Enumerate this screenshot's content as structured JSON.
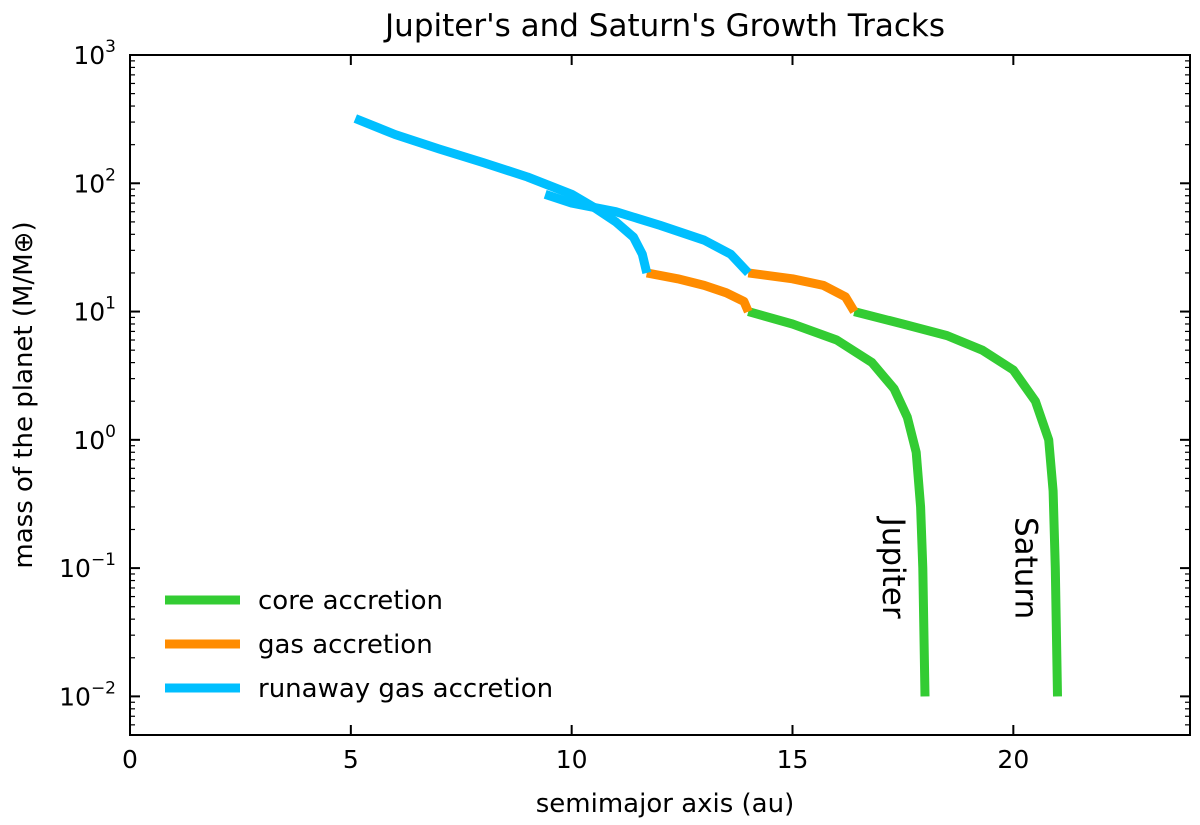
{
  "chart_data": {
    "type": "line",
    "title": "Jupiter's and Saturn's Growth Tracks",
    "xlabel": "semimajor axis (au)",
    "ylabel": "mass of the planet (M/M⊕)",
    "xlim": [
      0,
      24
    ],
    "ylim": [
      0.005,
      1000
    ],
    "yscale": "log",
    "grid": false,
    "legend_position": "lower-left",
    "x_ticks": [
      {
        "value": 0,
        "label": "0"
      },
      {
        "value": 5,
        "label": "5"
      },
      {
        "value": 10,
        "label": "10"
      },
      {
        "value": 15,
        "label": "15"
      },
      {
        "value": 20,
        "label": "20"
      }
    ],
    "y_ticks": [
      {
        "value": 0.01,
        "base": "10",
        "exp": "−2"
      },
      {
        "value": 0.1,
        "base": "10",
        "exp": "−1"
      },
      {
        "value": 1,
        "base": "10",
        "exp": "0"
      },
      {
        "value": 10,
        "base": "10",
        "exp": "1"
      },
      {
        "value": 100,
        "base": "10",
        "exp": "2"
      },
      {
        "value": 1000,
        "base": "10",
        "exp": "3"
      }
    ],
    "stages": [
      {
        "key": "core",
        "name": "core accretion",
        "color": "#33cc33"
      },
      {
        "key": "gas",
        "name": "gas accretion",
        "color": "#ff8c00"
      },
      {
        "key": "runaway",
        "name": "runaway gas accretion",
        "color": "#00bfff"
      }
    ],
    "tracks": [
      {
        "planet": "Jupiter",
        "label_at": {
          "x": 17.3,
          "y": 0.1
        },
        "segments": [
          {
            "stage": "core",
            "points": [
              [
                18.0,
                0.01
              ],
              [
                17.95,
                0.1
              ],
              [
                17.9,
                0.3
              ],
              [
                17.8,
                0.8
              ],
              [
                17.6,
                1.5
              ],
              [
                17.3,
                2.5
              ],
              [
                16.8,
                4.0
              ],
              [
                16.0,
                6.0
              ],
              [
                15.0,
                8.0
              ],
              [
                14.0,
                10.0
              ]
            ]
          },
          {
            "stage": "gas",
            "points": [
              [
                14.0,
                10.0
              ],
              [
                13.9,
                12.0
              ],
              [
                13.5,
                14.0
              ],
              [
                13.0,
                16.0
              ],
              [
                12.4,
                18.0
              ],
              [
                11.7,
                20.0
              ]
            ]
          },
          {
            "stage": "runaway",
            "points": [
              [
                11.7,
                20.0
              ],
              [
                11.6,
                28.0
              ],
              [
                11.4,
                38.0
              ],
              [
                11.0,
                50.0
              ],
              [
                10.5,
                65.0
              ],
              [
                10.0,
                82.0
              ],
              [
                9.0,
                112.0
              ],
              [
                8.0,
                145.0
              ],
              [
                7.0,
                185.0
              ],
              [
                6.0,
                240.0
              ],
              [
                5.1,
                320.0
              ]
            ]
          }
        ]
      },
      {
        "planet": "Saturn",
        "label_at": {
          "x": 20.3,
          "y": 0.1
        },
        "segments": [
          {
            "stage": "core",
            "points": [
              [
                21.0,
                0.01
              ],
              [
                20.95,
                0.1
              ],
              [
                20.9,
                0.4
              ],
              [
                20.8,
                1.0
              ],
              [
                20.5,
                2.0
              ],
              [
                20.0,
                3.5
              ],
              [
                19.3,
                5.0
              ],
              [
                18.5,
                6.5
              ],
              [
                17.5,
                8.0
              ],
              [
                16.4,
                10.0
              ]
            ]
          },
          {
            "stage": "gas",
            "points": [
              [
                16.4,
                10.0
              ],
              [
                16.2,
                13.0
              ],
              [
                15.7,
                16.0
              ],
              [
                15.0,
                18.0
              ],
              [
                14.0,
                20.0
              ]
            ]
          },
          {
            "stage": "runaway",
            "points": [
              [
                14.0,
                20.0
              ],
              [
                13.6,
                28.0
              ],
              [
                13.0,
                36.0
              ],
              [
                12.0,
                47.0
              ],
              [
                11.0,
                60.0
              ],
              [
                10.0,
                70.0
              ],
              [
                9.4,
                82.0
              ]
            ]
          }
        ]
      }
    ]
  }
}
